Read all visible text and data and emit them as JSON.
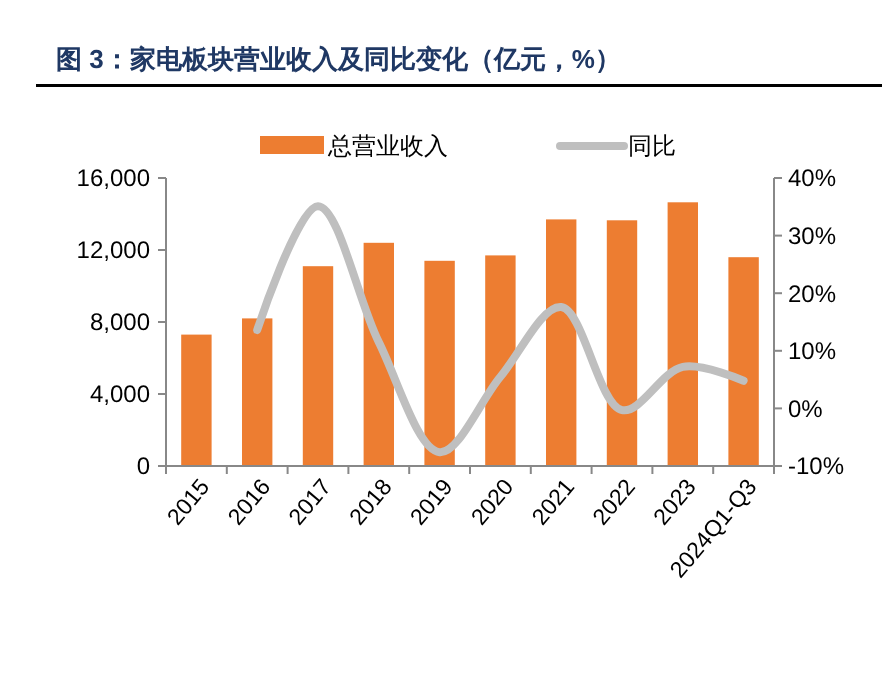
{
  "chart_data": {
    "type": "bar",
    "title": "图 3：家电板块营业收入及同比变化（亿元，%）",
    "categories": [
      "2015",
      "2016",
      "2017",
      "2018",
      "2019",
      "2020",
      "2021",
      "2022",
      "2023",
      "2024Q1-Q3"
    ],
    "series": [
      {
        "name": "总营业收入",
        "color": "#ed7d31",
        "values": [
          7300,
          8200,
          11100,
          12400,
          11400,
          11700,
          13700,
          13650,
          14650,
          11600
        ]
      },
      {
        "name": "同比",
        "type": "line",
        "axis": "y2",
        "color": "#bfbfbf",
        "values": [
          null,
          13.6,
          35.1,
          11.5,
          -7.6,
          5.5,
          17.6,
          -0.3,
          7.2,
          4.8
        ]
      }
    ],
    "ylim": [
      0,
      16000
    ],
    "yticks": [
      {
        "value": 0,
        "label": "0"
      },
      {
        "value": 4000,
        "label": "4,000"
      },
      {
        "value": 8000,
        "label": "8,000"
      },
      {
        "value": 12000,
        "label": "12,000"
      },
      {
        "value": 16000,
        "label": "16,000"
      }
    ],
    "y2lim": [
      -10,
      40
    ],
    "y2ticks": [
      {
        "value": -10,
        "label": "-10%"
      },
      {
        "value": 0,
        "label": "0%"
      },
      {
        "value": 10,
        "label": "10%"
      },
      {
        "value": 20,
        "label": "20%"
      },
      {
        "value": 30,
        "label": "30%"
      },
      {
        "value": 40,
        "label": "40%"
      }
    ],
    "legend": "top",
    "grid": false,
    "marker": "none",
    "line_style": "solid"
  }
}
